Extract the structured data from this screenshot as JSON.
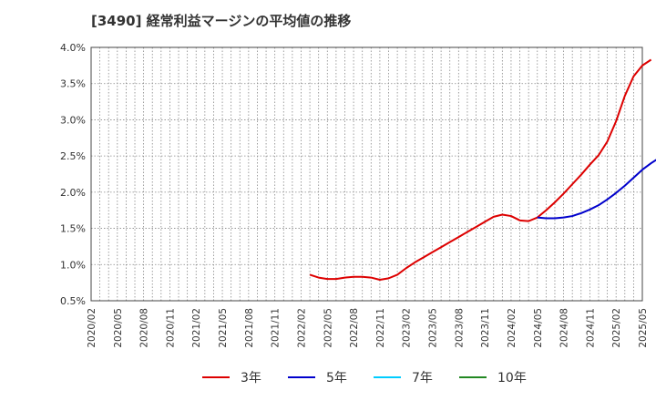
{
  "chart_data": {
    "type": "line",
    "title": "[3490]  経常利益マージンの平均値の推移",
    "xlabel": "",
    "ylabel": "",
    "ylim": [
      0.5,
      4.0
    ],
    "y_ticks": [
      0.5,
      1.0,
      1.5,
      2.0,
      2.5,
      3.0,
      3.5,
      4.0
    ],
    "y_tick_labels": [
      "0.5%",
      "1.0%",
      "1.5%",
      "2.0%",
      "2.5%",
      "3.0%",
      "3.5%",
      "4.0%"
    ],
    "x_tick_labels": [
      "2020/02",
      "2020/05",
      "2020/08",
      "2020/11",
      "2021/02",
      "2021/05",
      "2021/08",
      "2021/11",
      "2022/02",
      "2022/05",
      "2022/08",
      "2022/11",
      "2023/02",
      "2023/05",
      "2023/08",
      "2023/11",
      "2024/02",
      "2024/05",
      "2024/08",
      "2024/11",
      "2025/02",
      "2025/05"
    ],
    "grid": true,
    "legend_position": "bottom",
    "series": [
      {
        "name": "3年",
        "color": "#dd0000",
        "start_index": 25,
        "values": [
          0.86,
          0.82,
          0.8,
          0.8,
          0.82,
          0.83,
          0.83,
          0.82,
          0.79,
          0.81,
          0.86,
          0.95,
          1.03,
          1.1,
          1.17,
          1.24,
          1.31,
          1.38,
          1.45,
          1.52,
          1.59,
          1.66,
          1.69,
          1.67,
          1.61,
          1.6,
          1.65,
          1.75,
          1.86,
          1.98,
          2.11,
          2.24,
          2.38,
          2.51,
          2.7,
          2.98,
          3.33,
          3.6,
          3.75,
          3.83
        ]
      },
      {
        "name": "5年",
        "color": "#0000cc",
        "start_index": 51,
        "values": [
          1.65,
          1.64,
          1.64,
          1.65,
          1.67,
          1.71,
          1.76,
          1.82,
          1.9,
          1.99,
          2.09,
          2.2,
          2.31,
          2.4,
          2.48
        ]
      },
      {
        "name": "7年",
        "color": "#00ccff",
        "start_index": 0,
        "values": []
      },
      {
        "name": "10年",
        "color": "#228822",
        "start_index": 0,
        "values": []
      }
    ]
  }
}
